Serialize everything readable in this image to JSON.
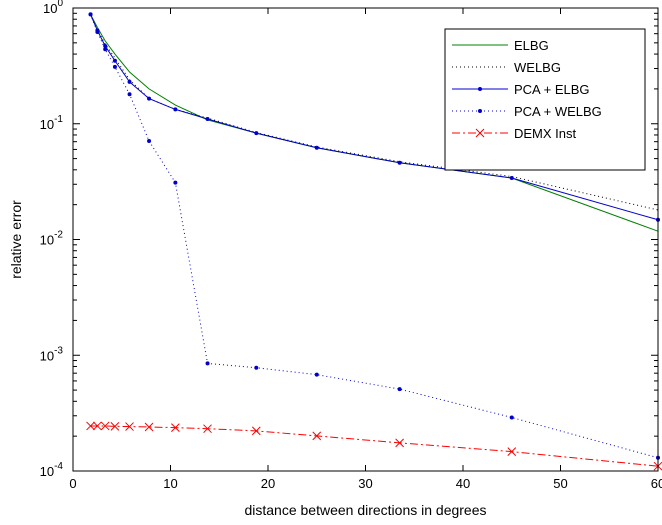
{
  "chart_data": {
    "type": "line",
    "xlabel": "distance between directions in degrees",
    "ylabel": "relative error",
    "xlim": [
      0,
      60
    ],
    "ylim": [
      0.0001,
      1
    ],
    "yscale": "log",
    "grid": false,
    "legend_position": "top-right",
    "x_ticks": [
      "0",
      "10",
      "20",
      "30",
      "40",
      "50",
      "60"
    ],
    "y_ticks": [
      {
        "base": "10",
        "exp": "0"
      },
      {
        "base": "10",
        "exp": "-1"
      },
      {
        "base": "10",
        "exp": "-2"
      },
      {
        "base": "10",
        "exp": "-3"
      },
      {
        "base": "10",
        "exp": "-4"
      }
    ],
    "series": [
      {
        "name": "ELBG",
        "color": "#008000",
        "style": "solid",
        "marker": "none",
        "x": [
          1.8,
          2.5,
          3.3,
          4.3,
          5.8,
          7.8,
          10.5,
          13.8,
          18.8,
          25,
          33.5,
          45,
          60
        ],
        "y": [
          0.88,
          0.68,
          0.52,
          0.4,
          0.28,
          0.2,
          0.145,
          0.108,
          0.083,
          0.062,
          0.046,
          0.034,
          0.0118
        ]
      },
      {
        "name": "WELBG",
        "color": "#000000",
        "style": "dotted",
        "marker": "none",
        "x": [
          1.8,
          2.5,
          3.3,
          4.3,
          5.8,
          7.8,
          10.5,
          13.8,
          18.8,
          25,
          33.5,
          45,
          60
        ],
        "y": [
          0.88,
          0.65,
          0.49,
          0.37,
          0.24,
          0.165,
          0.133,
          0.112,
          0.084,
          0.063,
          0.047,
          0.035,
          0.018
        ]
      },
      {
        "name": "PCA + ELBG",
        "color": "#0000cc",
        "style": "solid",
        "marker": "dot",
        "x": [
          1.8,
          2.5,
          3.3,
          4.3,
          5.8,
          7.8,
          10.5,
          13.8,
          18.8,
          25,
          33.5,
          45,
          60
        ],
        "y": [
          0.88,
          0.64,
          0.47,
          0.35,
          0.23,
          0.165,
          0.133,
          0.11,
          0.083,
          0.062,
          0.046,
          0.034,
          0.0148
        ]
      },
      {
        "name": "PCA + WELBG",
        "color": "#0000cc",
        "style": "dotted",
        "marker": "dot",
        "x": [
          1.8,
          2.5,
          3.3,
          4.3,
          5.8,
          7.8,
          10.5,
          13.8,
          18.8,
          25,
          33.5,
          45,
          60
        ],
        "y": [
          0.88,
          0.62,
          0.44,
          0.31,
          0.18,
          0.071,
          0.031,
          0.00085,
          0.00078,
          0.00068,
          0.00051,
          0.00029,
          0.00013
        ]
      },
      {
        "name": "DEMX Inst",
        "color": "#ff0000",
        "style": "dashdot",
        "marker": "x",
        "x": [
          1.8,
          2.5,
          3.3,
          4.3,
          5.8,
          7.8,
          10.5,
          13.8,
          18.8,
          25,
          33.5,
          45,
          60
        ],
        "y": [
          0.000245,
          0.000245,
          0.000245,
          0.000243,
          0.000242,
          0.00024,
          0.000237,
          0.000232,
          0.000222,
          0.000201,
          0.000175,
          0.000147,
          0.00011
        ]
      }
    ]
  }
}
